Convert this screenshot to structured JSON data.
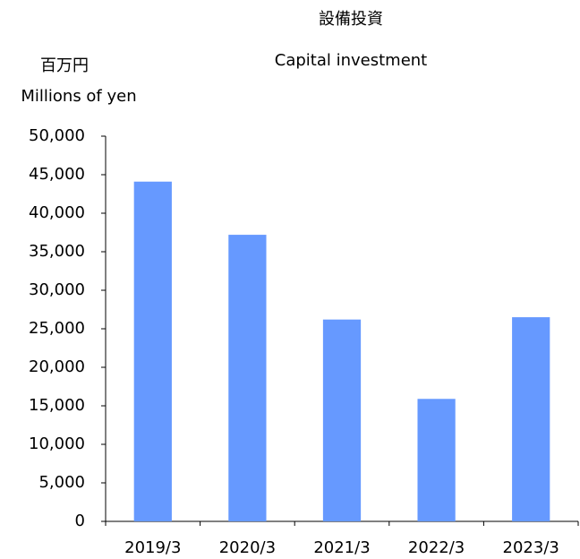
{
  "chart_data": {
    "type": "bar",
    "title": "設備投資",
    "subtitle": "Capital investment",
    "ylabel": [
      "百万円",
      "Millions of yen"
    ],
    "categories": [
      "2019/3",
      "2020/3",
      "2021/3",
      "2022/3",
      "2023/3"
    ],
    "values": [
      44100,
      37200,
      26200,
      15900,
      26500
    ],
    "color": "#6699ff",
    "ylim": [
      0,
      50000
    ],
    "yticks": [
      0,
      {
        "value": 5000,
        "label": "5,000"
      },
      {
        "value": 10000,
        "label": "10,000"
      },
      {
        "value": 15000,
        "label": "15,000"
      },
      {
        "value": 20000,
        "label": "20,000"
      },
      {
        "value": 25000,
        "label": "25,000"
      },
      {
        "value": 30000,
        "label": "30,000"
      },
      {
        "value": 35000,
        "label": "35,000"
      },
      {
        "value": 40000,
        "label": "40,000"
      },
      {
        "value": 45000,
        "label": "45,000"
      },
      {
        "value": 50000,
        "label": "50,000"
      }
    ],
    "grid": false
  }
}
